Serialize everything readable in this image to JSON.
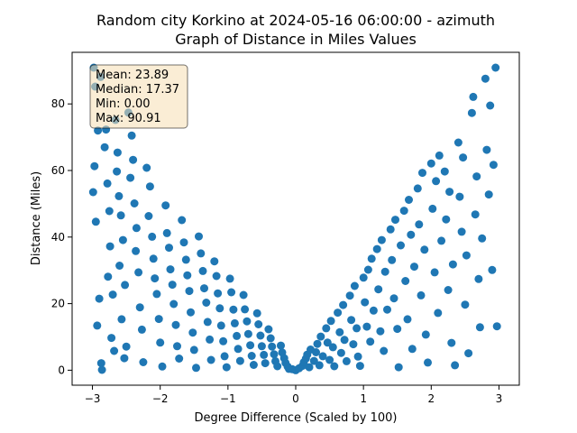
{
  "chart_data": {
    "type": "scatter",
    "title_line1": "Random city Korkino at 2024-05-16 06:00:00  - azimuth",
    "title_line2": "Graph of Distance in Miles Values",
    "xlabel": "Degree Difference (Scaled by 100)",
    "ylabel": "Distance (Miles)",
    "xlim": [
      -3.3,
      3.3
    ],
    "ylim": [
      -4.5,
      95.5
    ],
    "xticks": [
      -3,
      -2,
      -1,
      0,
      1,
      2,
      3
    ],
    "yticks": [
      0,
      20,
      40,
      60,
      80
    ],
    "grid": false,
    "marker_color": "#1f77b4",
    "stats_box": {
      "mean": "Mean: 23.89",
      "median": "Median: 17.37",
      "min": "Min: 0.00",
      "max": "Max: 90.91"
    },
    "points": [
      [
        -2.98,
        90.9
      ],
      [
        -2.96,
        85.2
      ],
      [
        -2.92,
        72.0
      ],
      [
        -2.97,
        61.3
      ],
      [
        -2.99,
        53.5
      ],
      [
        -2.95,
        44.6
      ],
      [
        -2.9,
        21.5
      ],
      [
        -2.93,
        13.4
      ],
      [
        -2.87,
        2.1
      ],
      [
        -2.86,
        0.1
      ],
      [
        -2.88,
        88.1
      ],
      [
        -2.8,
        72.3
      ],
      [
        -2.82,
        67.0
      ],
      [
        -2.78,
        56.1
      ],
      [
        -2.75,
        47.8
      ],
      [
        -2.74,
        37.2
      ],
      [
        -2.77,
        28.1
      ],
      [
        -2.7,
        22.7
      ],
      [
        -2.72,
        9.7
      ],
      [
        -2.68,
        5.8
      ],
      [
        -2.66,
        75.2
      ],
      [
        -2.63,
        65.4
      ],
      [
        -2.64,
        59.7
      ],
      [
        -2.61,
        52.3
      ],
      [
        -2.58,
        46.5
      ],
      [
        -2.55,
        39.1
      ],
      [
        -2.6,
        31.4
      ],
      [
        -2.52,
        25.6
      ],
      [
        -2.57,
        15.3
      ],
      [
        -2.5,
        7.1
      ],
      [
        -2.53,
        3.6
      ],
      [
        -2.47,
        77.4
      ],
      [
        -2.42,
        70.5
      ],
      [
        -2.4,
        63.2
      ],
      [
        -2.44,
        57.8
      ],
      [
        -2.38,
        50.1
      ],
      [
        -2.35,
        42.7
      ],
      [
        -2.36,
        35.8
      ],
      [
        -2.32,
        29.4
      ],
      [
        -2.3,
        18.9
      ],
      [
        -2.27,
        12.2
      ],
      [
        -2.25,
        2.4
      ],
      [
        -2.2,
        60.8
      ],
      [
        -2.15,
        55.2
      ],
      [
        -2.17,
        46.3
      ],
      [
        -2.12,
        40.1
      ],
      [
        -2.1,
        33.5
      ],
      [
        -2.08,
        27.6
      ],
      [
        -2.05,
        22.9
      ],
      [
        -2.02,
        15.4
      ],
      [
        -2.0,
        8.3
      ],
      [
        -1.97,
        1.1
      ],
      [
        -1.92,
        49.5
      ],
      [
        -1.9,
        41.2
      ],
      [
        -1.87,
        36.8
      ],
      [
        -1.85,
        30.3
      ],
      [
        -1.82,
        25.7
      ],
      [
        -1.8,
        19.9
      ],
      [
        -1.77,
        13.6
      ],
      [
        -1.75,
        7.2
      ],
      [
        -1.72,
        3.5
      ],
      [
        -1.68,
        45.1
      ],
      [
        -1.65,
        38.4
      ],
      [
        -1.62,
        33.2
      ],
      [
        -1.6,
        28.5
      ],
      [
        -1.57,
        23.8
      ],
      [
        -1.55,
        17.4
      ],
      [
        -1.52,
        11.3
      ],
      [
        -1.5,
        6.1
      ],
      [
        -1.47,
        0.7
      ],
      [
        -1.43,
        40.2
      ],
      [
        -1.4,
        35.1
      ],
      [
        -1.37,
        29.8
      ],
      [
        -1.35,
        24.6
      ],
      [
        -1.32,
        20.3
      ],
      [
        -1.3,
        14.5
      ],
      [
        -1.27,
        9.2
      ],
      [
        -1.25,
        3.1
      ],
      [
        -1.2,
        32.7
      ],
      [
        -1.17,
        28.3
      ],
      [
        -1.15,
        23.1
      ],
      [
        -1.12,
        18.6
      ],
      [
        -1.1,
        13.4
      ],
      [
        -1.07,
        8.7
      ],
      [
        -1.05,
        4.2
      ],
      [
        -1.02,
        0.9
      ],
      [
        -0.97,
        27.5
      ],
      [
        -0.95,
        23.4
      ],
      [
        -0.92,
        18.2
      ],
      [
        -0.9,
        14.1
      ],
      [
        -0.87,
        10.3
      ],
      [
        -0.85,
        6.4
      ],
      [
        -0.82,
        2.8
      ],
      [
        -0.77,
        22.6
      ],
      [
        -0.75,
        18.3
      ],
      [
        -0.72,
        14.7
      ],
      [
        -0.7,
        10.9
      ],
      [
        -0.67,
        7.5
      ],
      [
        -0.65,
        4.3
      ],
      [
        -0.62,
        1.6
      ],
      [
        -0.57,
        17.1
      ],
      [
        -0.55,
        13.8
      ],
      [
        -0.52,
        10.4
      ],
      [
        -0.5,
        7.2
      ],
      [
        -0.47,
        4.6
      ],
      [
        -0.45,
        2.1
      ],
      [
        -0.4,
        12.3
      ],
      [
        -0.37,
        9.6
      ],
      [
        -0.35,
        7.1
      ],
      [
        -0.32,
        4.8
      ],
      [
        -0.3,
        2.7
      ],
      [
        -0.27,
        1.2
      ],
      [
        -0.22,
        7.4
      ],
      [
        -0.2,
        5.3
      ],
      [
        -0.17,
        3.6
      ],
      [
        -0.15,
        2.2
      ],
      [
        -0.12,
        1.1
      ],
      [
        -0.1,
        0.4
      ],
      [
        -0.05,
        0.3
      ],
      [
        0.0,
        0.0
      ],
      [
        0.05,
        0.6
      ],
      [
        0.1,
        1.3
      ],
      [
        0.12,
        2.4
      ],
      [
        0.15,
        3.5
      ],
      [
        0.17,
        4.7
      ],
      [
        0.2,
        0.9
      ],
      [
        0.22,
        6.2
      ],
      [
        0.27,
        2.8
      ],
      [
        0.3,
        5.4
      ],
      [
        0.32,
        7.9
      ],
      [
        0.35,
        1.5
      ],
      [
        0.37,
        10.1
      ],
      [
        0.4,
        4.2
      ],
      [
        0.45,
        12.6
      ],
      [
        0.47,
        8.3
      ],
      [
        0.5,
        3.1
      ],
      [
        0.52,
        14.8
      ],
      [
        0.55,
        6.9
      ],
      [
        0.57,
        1.2
      ],
      [
        0.62,
        17.3
      ],
      [
        0.65,
        11.4
      ],
      [
        0.67,
        5.2
      ],
      [
        0.7,
        19.6
      ],
      [
        0.72,
        9.1
      ],
      [
        0.75,
        2.7
      ],
      [
        0.8,
        22.4
      ],
      [
        0.82,
        15.1
      ],
      [
        0.85,
        7.8
      ],
      [
        0.87,
        25.3
      ],
      [
        0.9,
        12.6
      ],
      [
        0.92,
        4.1
      ],
      [
        0.95,
        1.3
      ],
      [
        1.0,
        27.8
      ],
      [
        1.02,
        20.4
      ],
      [
        1.05,
        13.1
      ],
      [
        1.07,
        30.2
      ],
      [
        1.1,
        8.6
      ],
      [
        1.12,
        33.5
      ],
      [
        1.15,
        17.9
      ],
      [
        1.2,
        36.4
      ],
      [
        1.22,
        24.3
      ],
      [
        1.25,
        11.7
      ],
      [
        1.27,
        39.1
      ],
      [
        1.3,
        5.8
      ],
      [
        1.32,
        29.6
      ],
      [
        1.35,
        18.2
      ],
      [
        1.4,
        42.3
      ],
      [
        1.42,
        33.1
      ],
      [
        1.45,
        21.6
      ],
      [
        1.47,
        45.2
      ],
      [
        1.5,
        12.4
      ],
      [
        1.52,
        0.9
      ],
      [
        1.55,
        37.5
      ],
      [
        1.6,
        47.9
      ],
      [
        1.62,
        26.8
      ],
      [
        1.65,
        15.3
      ],
      [
        1.67,
        51.2
      ],
      [
        1.7,
        40.7
      ],
      [
        1.72,
        6.4
      ],
      [
        1.75,
        31.1
      ],
      [
        1.8,
        54.6
      ],
      [
        1.82,
        43.8
      ],
      [
        1.85,
        22.5
      ],
      [
        1.87,
        59.3
      ],
      [
        1.9,
        36.2
      ],
      [
        1.92,
        10.7
      ],
      [
        1.95,
        2.3
      ],
      [
        2.0,
        62.1
      ],
      [
        2.02,
        48.5
      ],
      [
        2.05,
        29.4
      ],
      [
        2.07,
        56.8
      ],
      [
        2.1,
        17.2
      ],
      [
        2.12,
        64.5
      ],
      [
        2.15,
        38.9
      ],
      [
        2.2,
        59.7
      ],
      [
        2.22,
        45.3
      ],
      [
        2.25,
        24.1
      ],
      [
        2.27,
        53.6
      ],
      [
        2.3,
        8.2
      ],
      [
        2.32,
        31.8
      ],
      [
        2.35,
        1.5
      ],
      [
        2.4,
        68.4
      ],
      [
        2.42,
        52.1
      ],
      [
        2.45,
        41.6
      ],
      [
        2.47,
        63.9
      ],
      [
        2.5,
        19.7
      ],
      [
        2.52,
        34.5
      ],
      [
        2.55,
        5.1
      ],
      [
        2.6,
        77.3
      ],
      [
        2.62,
        82.1
      ],
      [
        2.65,
        46.8
      ],
      [
        2.67,
        58.2
      ],
      [
        2.7,
        27.4
      ],
      [
        2.72,
        12.9
      ],
      [
        2.75,
        39.6
      ],
      [
        2.8,
        87.6
      ],
      [
        2.82,
        66.2
      ],
      [
        2.85,
        52.8
      ],
      [
        2.87,
        79.5
      ],
      [
        2.9,
        30.1
      ],
      [
        2.92,
        61.7
      ],
      [
        2.95,
        90.9
      ],
      [
        2.97,
        13.2
      ]
    ]
  }
}
